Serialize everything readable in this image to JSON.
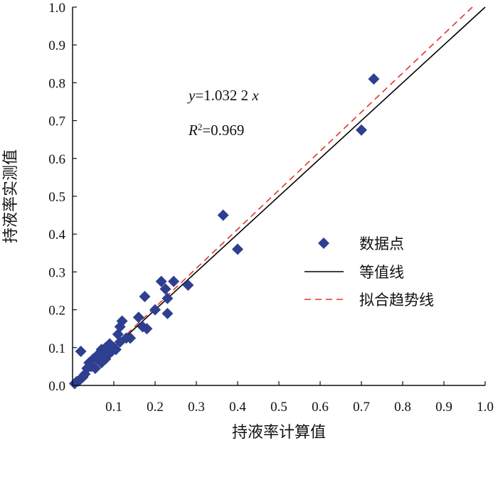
{
  "chart_data": {
    "type": "scatter",
    "xlabel": "持液率计算值",
    "ylabel": "持液率实测值",
    "xlim": [
      0,
      1
    ],
    "ylim": [
      0,
      1
    ],
    "x_ticks": [
      "0.1",
      "0.2",
      "0.3",
      "0.4",
      "0.5",
      "0.6",
      "0.7",
      "0.8",
      "0.9",
      "1.0"
    ],
    "y_ticks": [
      "0.0",
      "0.1",
      "0.2",
      "0.3",
      "0.4",
      "0.5",
      "0.6",
      "0.7",
      "0.8",
      "0.9",
      "1.0"
    ],
    "grid": false,
    "legend_position": "right",
    "annotations": {
      "equation_y": "y",
      "equation_rest": "=1.032 2 ",
      "equation_x": "x",
      "r2_R": "R",
      "r2_exp": "2",
      "r2_value": "=0.969"
    },
    "series": [
      {
        "name": "数据点",
        "kind": "points",
        "color": "#2f3f8f",
        "marker": "diamond",
        "points": [
          [
            0.005,
            0.005
          ],
          [
            0.01,
            0.01
          ],
          [
            0.015,
            0.012
          ],
          [
            0.02,
            0.018
          ],
          [
            0.025,
            0.022
          ],
          [
            0.03,
            0.03
          ],
          [
            0.02,
            0.09
          ],
          [
            0.035,
            0.045
          ],
          [
            0.04,
            0.06
          ],
          [
            0.045,
            0.05
          ],
          [
            0.05,
            0.07
          ],
          [
            0.055,
            0.045
          ],
          [
            0.06,
            0.08
          ],
          [
            0.065,
            0.065
          ],
          [
            0.07,
            0.06
          ],
          [
            0.07,
            0.095
          ],
          [
            0.075,
            0.085
          ],
          [
            0.08,
            0.07
          ],
          [
            0.08,
            0.1
          ],
          [
            0.085,
            0.08
          ],
          [
            0.09,
            0.11
          ],
          [
            0.095,
            0.09
          ],
          [
            0.1,
            0.1
          ],
          [
            0.105,
            0.095
          ],
          [
            0.11,
            0.135
          ],
          [
            0.115,
            0.115
          ],
          [
            0.12,
            0.17
          ],
          [
            0.115,
            0.155
          ],
          [
            0.13,
            0.125
          ],
          [
            0.14,
            0.125
          ],
          [
            0.16,
            0.18
          ],
          [
            0.17,
            0.155
          ],
          [
            0.18,
            0.15
          ],
          [
            0.175,
            0.235
          ],
          [
            0.2,
            0.2
          ],
          [
            0.215,
            0.275
          ],
          [
            0.225,
            0.255
          ],
          [
            0.23,
            0.23
          ],
          [
            0.23,
            0.19
          ],
          [
            0.245,
            0.275
          ],
          [
            0.28,
            0.265
          ],
          [
            0.365,
            0.45
          ],
          [
            0.4,
            0.36
          ],
          [
            0.7,
            0.675
          ],
          [
            0.73,
            0.81
          ]
        ]
      },
      {
        "name": "等值线",
        "kind": "line",
        "color": "#000000",
        "slope": 1.0,
        "dash": ""
      },
      {
        "name": "拟合趋势线",
        "kind": "line",
        "color": "#e0362c",
        "slope": 1.0322,
        "dash": "9,6"
      }
    ]
  }
}
